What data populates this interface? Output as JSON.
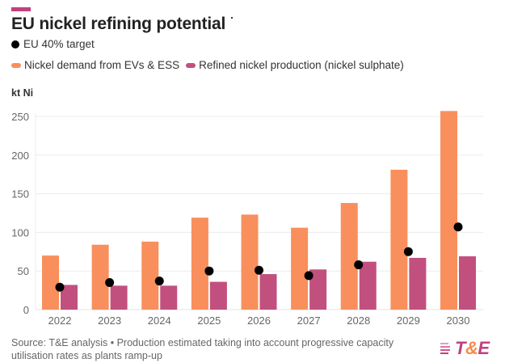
{
  "header": {
    "title": "EU nickel refining potential"
  },
  "legend": {
    "target_label": "EU 40% target",
    "items": [
      {
        "label": "Nickel demand from EVs & ESS",
        "color": "#f98f5c"
      },
      {
        "label": "Refined nickel production (nickel sulphate)",
        "color": "#c2507f"
      }
    ]
  },
  "footer": {
    "source": "Source: T&E analysis • Production estimated taking into account progressive capacity utilisation rates as plants ramp-up"
  },
  "logo": {
    "t": "T",
    "amp": "&",
    "e": "E"
  },
  "colors": {
    "demand": "#f98f5c",
    "production": "#c2507f",
    "target": "#000000",
    "accent": "#c2407e"
  },
  "chart_data": {
    "type": "bar",
    "title": "EU nickel refining potential",
    "xlabel": "",
    "ylabel": "kt Ni",
    "ylim": [
      0,
      250
    ],
    "yticks": [
      0,
      50,
      100,
      150,
      200,
      250
    ],
    "grid": true,
    "legend_position": "top-left",
    "categories": [
      "2022",
      "2023",
      "2024",
      "2025",
      "2026",
      "2027",
      "2028",
      "2029",
      "2030"
    ],
    "series": [
      {
        "name": "Nickel demand from EVs & ESS",
        "kind": "bar",
        "values": [
          70,
          84,
          88,
          119,
          123,
          106,
          138,
          181,
          257
        ]
      },
      {
        "name": "Refined nickel production (nickel sulphate)",
        "kind": "bar",
        "values": [
          32,
          31,
          31,
          36,
          46,
          52,
          62,
          67,
          69
        ]
      },
      {
        "name": "EU 40% target",
        "kind": "scatter",
        "values": [
          29,
          35,
          37,
          50,
          51,
          44,
          58,
          75,
          107
        ]
      }
    ]
  }
}
